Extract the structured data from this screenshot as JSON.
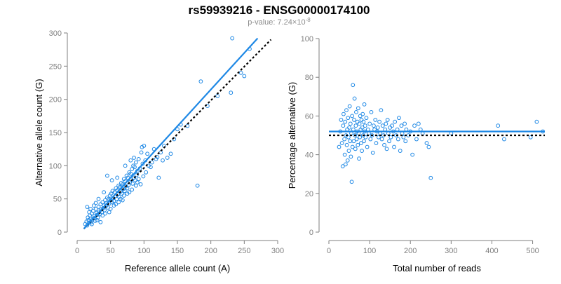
{
  "title": "rs59939216 - ENSG00000174100",
  "subtitle": "p-value: 7.24×10",
  "subtitle_exp": "-8",
  "colors": {
    "points": "#1e88e5",
    "fit": "#1e88e5",
    "reference": "#000000",
    "axis": "#7f7f7f"
  },
  "chart_data": [
    {
      "type": "scatter",
      "xlabel": "Reference allele count (A)",
      "ylabel": "Alternative allele count (G)",
      "xlim": [
        0,
        300
      ],
      "ylim": [
        0,
        300
      ],
      "xticks": [
        0,
        50,
        100,
        150,
        200,
        250,
        300
      ],
      "yticks": [
        0,
        50,
        100,
        150,
        200,
        250,
        300
      ],
      "grid": false,
      "fit_line": {
        "x": [
          10,
          270
        ],
        "y": [
          5,
          292
        ]
      },
      "reference_line": {
        "x": [
          10,
          290
        ],
        "y": [
          5,
          290
        ]
      },
      "points": [
        [
          12,
          12
        ],
        [
          14,
          16
        ],
        [
          15,
          10
        ],
        [
          16,
          22
        ],
        [
          17,
          18
        ],
        [
          18,
          14
        ],
        [
          19,
          25
        ],
        [
          20,
          20
        ],
        [
          21,
          15
        ],
        [
          22,
          28
        ],
        [
          23,
          19
        ],
        [
          24,
          32
        ],
        [
          25,
          21
        ],
        [
          26,
          24
        ],
        [
          27,
          17
        ],
        [
          28,
          35
        ],
        [
          29,
          29
        ],
        [
          30,
          26
        ],
        [
          31,
          22
        ],
        [
          32,
          38
        ],
        [
          33,
          31
        ],
        [
          34,
          27
        ],
        [
          35,
          42
        ],
        [
          36,
          34
        ],
        [
          37,
          30
        ],
        [
          38,
          45
        ],
        [
          39,
          36
        ],
        [
          40,
          40
        ],
        [
          41,
          33
        ],
        [
          42,
          48
        ],
        [
          43,
          39
        ],
        [
          44,
          44
        ],
        [
          45,
          52
        ],
        [
          46,
          37
        ],
        [
          47,
          50
        ],
        [
          48,
          43
        ],
        [
          49,
          55
        ],
        [
          50,
          48
        ],
        [
          51,
          58
        ],
        [
          52,
          45
        ],
        [
          53,
          62
        ],
        [
          54,
          51
        ],
        [
          55,
          47
        ],
        [
          56,
          60
        ],
        [
          57,
          54
        ],
        [
          58,
          66
        ],
        [
          59,
          50
        ],
        [
          60,
          63
        ],
        [
          61,
          57
        ],
        [
          62,
          70
        ],
        [
          63,
          53
        ],
        [
          64,
          68
        ],
        [
          65,
          61
        ],
        [
          66,
          74
        ],
        [
          67,
          58
        ],
        [
          68,
          72
        ],
        [
          69,
          65
        ],
        [
          70,
          80
        ],
        [
          71,
          62
        ],
        [
          72,
          77
        ],
        [
          73,
          69
        ],
        [
          74,
          85
        ],
        [
          75,
          66
        ],
        [
          76,
          82
        ],
        [
          77,
          71
        ],
        [
          78,
          90
        ],
        [
          79,
          75
        ],
        [
          80,
          88
        ],
        [
          81,
          79
        ],
        [
          82,
          95
        ],
        [
          83,
          73
        ],
        [
          84,
          100
        ],
        [
          85,
          82
        ],
        [
          86,
          98
        ],
        [
          87,
          78
        ],
        [
          88,
          105
        ],
        [
          89,
          86
        ],
        [
          90,
          92
        ],
        [
          92,
          110
        ],
        [
          94,
          96
        ],
        [
          96,
          120
        ],
        [
          98,
          103
        ],
        [
          100,
          130
        ],
        [
          102,
          108
        ],
        [
          105,
          118
        ],
        [
          110,
          98
        ],
        [
          115,
          125
        ],
        [
          120,
          113
        ],
        [
          128,
          108
        ],
        [
          135,
          112
        ],
        [
          150,
          155
        ],
        [
          155,
          162
        ],
        [
          180,
          70
        ],
        [
          185,
          227
        ],
        [
          230,
          210
        ],
        [
          232,
          292
        ],
        [
          250,
          235
        ],
        [
          258,
          276
        ],
        [
          15,
          38
        ],
        [
          18,
          30
        ],
        [
          20,
          35
        ],
        [
          22,
          12
        ],
        [
          25,
          40
        ],
        [
          28,
          44
        ],
        [
          30,
          18
        ],
        [
          32,
          50
        ],
        [
          35,
          15
        ],
        [
          38,
          25
        ],
        [
          40,
          60
        ],
        [
          42,
          28
        ],
        [
          45,
          85
        ],
        [
          48,
          30
        ],
        [
          50,
          35
        ],
        [
          52,
          78
        ],
        [
          55,
          40
        ],
        [
          58,
          42
        ],
        [
          60,
          82
        ],
        [
          62,
          45
        ],
        [
          65,
          50
        ],
        [
          68,
          48
        ],
        [
          70,
          55
        ],
        [
          72,
          100
        ],
        [
          75,
          58
        ],
        [
          78,
          60
        ],
        [
          80,
          108
        ],
        [
          82,
          64
        ],
        [
          85,
          112
        ],
        [
          88,
          70
        ],
        [
          90,
          75
        ],
        [
          92,
          80
        ],
        [
          95,
          72
        ],
        [
          97,
          128
        ],
        [
          99,
          84
        ],
        [
          103,
          90
        ],
        [
          107,
          100
        ],
        [
          112,
          105
        ],
        [
          118,
          110
        ],
        [
          122,
          82
        ],
        [
          125,
          120
        ],
        [
          130,
          130
        ],
        [
          140,
          118
        ],
        [
          145,
          140
        ],
        [
          165,
          160
        ],
        [
          195,
          190
        ],
        [
          210,
          205
        ],
        [
          245,
          240
        ]
      ]
    },
    {
      "type": "scatter",
      "xlabel": "Total number of reads",
      "ylabel": "Percentage alternative (G)",
      "xlim": [
        0,
        530
      ],
      "ylim": [
        0,
        100
      ],
      "xticks": [
        0,
        100,
        200,
        300,
        400,
        500
      ],
      "yticks": [
        0,
        20,
        40,
        60,
        80,
        100
      ],
      "grid": false,
      "fit_line": {
        "x": [
          0,
          530
        ],
        "y": [
          52,
          52
        ]
      },
      "reference_line": {
        "x": [
          0,
          530
        ],
        "y": [
          50,
          50
        ]
      },
      "points": [
        [
          25,
          44
        ],
        [
          28,
          52
        ],
        [
          30,
          58
        ],
        [
          32,
          46
        ],
        [
          34,
          34
        ],
        [
          35,
          55
        ],
        [
          36,
          61
        ],
        [
          38,
          48
        ],
        [
          39,
          40
        ],
        [
          40,
          57
        ],
        [
          41,
          35
        ],
        [
          42,
          50
        ],
        [
          43,
          63
        ],
        [
          44,
          45
        ],
        [
          45,
          53
        ],
        [
          46,
          37
        ],
        [
          47,
          59
        ],
        [
          48,
          49
        ],
        [
          49,
          42
        ],
        [
          50,
          54
        ],
        [
          51,
          65
        ],
        [
          52,
          47
        ],
        [
          53,
          56
        ],
        [
          54,
          39
        ],
        [
          55,
          51
        ],
        [
          56,
          26
        ],
        [
          57,
          60
        ],
        [
          58,
          44
        ],
        [
          59,
          76
        ],
        [
          60,
          53
        ],
        [
          61,
          47
        ],
        [
          62,
          58
        ],
        [
          63,
          69
        ],
        [
          64,
          50
        ],
        [
          65,
          43
        ],
        [
          66,
          55
        ],
        [
          67,
          62
        ],
        [
          68,
          48
        ],
        [
          69,
          52
        ],
        [
          70,
          57
        ],
        [
          71,
          45
        ],
        [
          72,
          64
        ],
        [
          73,
          51
        ],
        [
          74,
          38
        ],
        [
          75,
          56
        ],
        [
          76,
          49
        ],
        [
          77,
          60
        ],
        [
          78,
          53
        ],
        [
          79,
          46
        ],
        [
          80,
          58
        ],
        [
          81,
          42
        ],
        [
          82,
          54
        ],
        [
          83,
          61
        ],
        [
          84,
          50
        ],
        [
          85,
          57
        ],
        [
          86,
          47
        ],
        [
          87,
          66
        ],
        [
          88,
          52
        ],
        [
          89,
          55
        ],
        [
          90,
          49
        ],
        [
          92,
          59
        ],
        [
          94,
          44
        ],
        [
          96,
          53
        ],
        [
          98,
          51
        ],
        [
          100,
          56
        ],
        [
          102,
          48
        ],
        [
          104,
          62
        ],
        [
          106,
          50
        ],
        [
          108,
          41
        ],
        [
          110,
          55
        ],
        [
          112,
          53
        ],
        [
          114,
          58
        ],
        [
          116,
          46
        ],
        [
          118,
          52
        ],
        [
          120,
          54
        ],
        [
          122,
          49
        ],
        [
          124,
          57
        ],
        [
          126,
          51
        ],
        [
          128,
          63
        ],
        [
          130,
          48
        ],
        [
          132,
          55
        ],
        [
          134,
          50
        ],
        [
          136,
          45
        ],
        [
          138,
          53
        ],
        [
          140,
          56
        ],
        [
          142,
          43
        ],
        [
          144,
          58
        ],
        [
          146,
          51
        ],
        [
          148,
          47
        ],
        [
          150,
          54
        ],
        [
          152,
          49
        ],
        [
          155,
          55
        ],
        [
          158,
          52
        ],
        [
          160,
          44
        ],
        [
          162,
          57
        ],
        [
          165,
          50
        ],
        [
          168,
          53
        ],
        [
          170,
          48
        ],
        [
          172,
          59
        ],
        [
          175,
          42
        ],
        [
          178,
          55
        ],
        [
          180,
          51
        ],
        [
          183,
          49
        ],
        [
          186,
          56
        ],
        [
          188,
          47
        ],
        [
          190,
          53
        ],
        [
          195,
          50
        ],
        [
          200,
          52
        ],
        [
          205,
          40
        ],
        [
          210,
          55
        ],
        [
          215,
          48
        ],
        [
          220,
          56
        ],
        [
          225,
          53
        ],
        [
          230,
          51
        ],
        [
          240,
          46
        ],
        [
          245,
          44
        ],
        [
          250,
          28
        ],
        [
          300,
          51
        ],
        [
          415,
          55
        ],
        [
          430,
          48
        ],
        [
          495,
          49
        ],
        [
          510,
          57
        ],
        [
          525,
          52
        ]
      ]
    }
  ]
}
